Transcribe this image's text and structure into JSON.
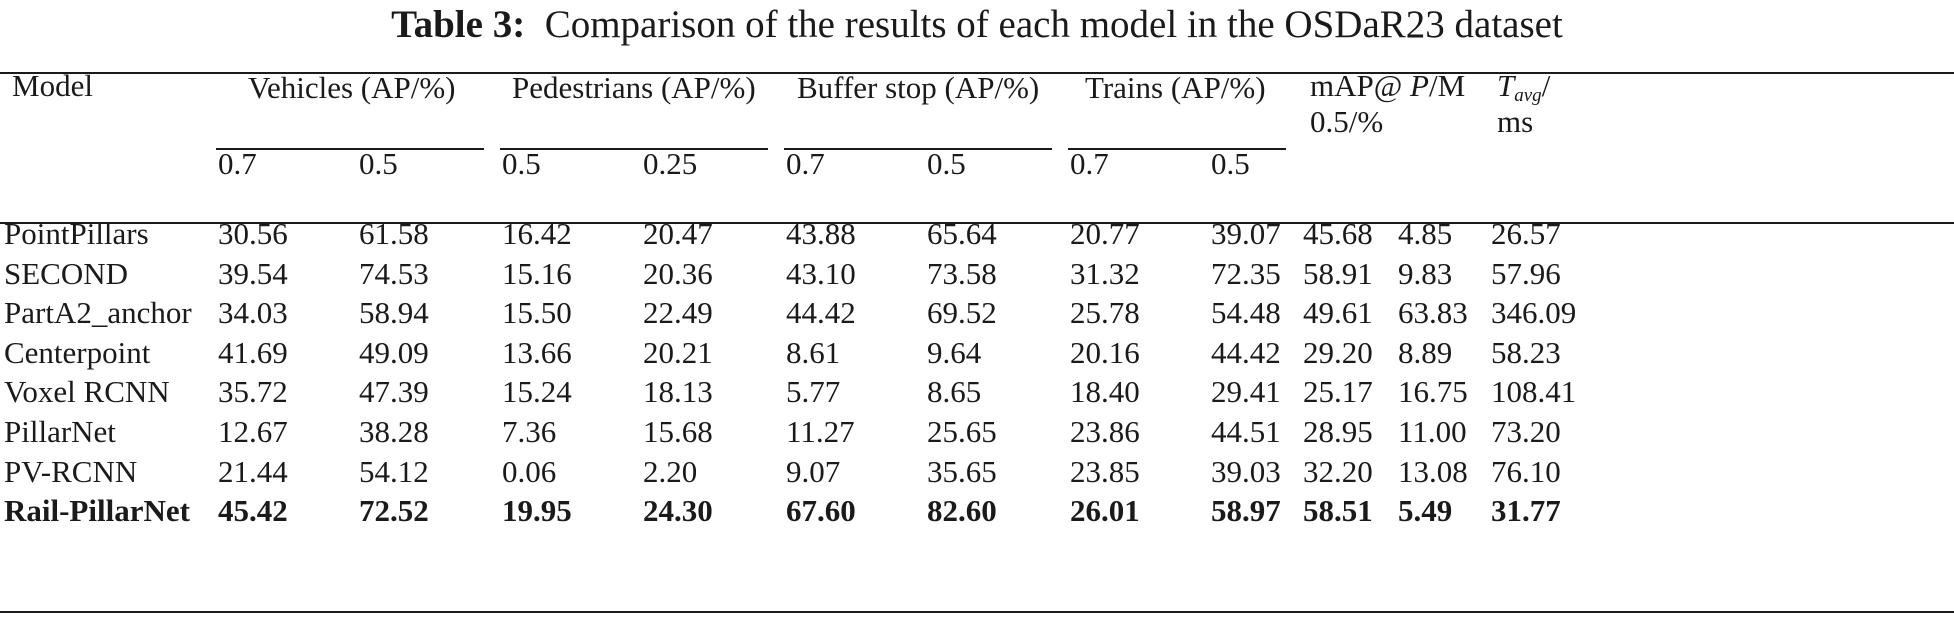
{
  "caption": {
    "label": "Table 3:",
    "text": "Comparison of the results of each model in the OSDaR23 dataset"
  },
  "header": {
    "model": "Model",
    "groups": [
      "Vehicles (AP/%)",
      "Pedestrians (AP/%)",
      "Buffer stop (AP/%)",
      "Trains (AP/%)"
    ],
    "map_line1": "mAP@",
    "map_line2": "0.5/%",
    "p_italic": "P",
    "p_unit": "/M",
    "t_main": "T",
    "t_sub": "avg",
    "t_slash": "/",
    "t_unit": "ms",
    "thresholds": [
      "0.7",
      "0.5",
      "0.5",
      "0.25",
      "0.7",
      "0.5",
      "0.7",
      "0.5"
    ]
  },
  "rows": [
    {
      "model": "PointPillars",
      "values": [
        "30.56",
        "61.58",
        "16.42",
        "20.47",
        "43.88",
        "65.64",
        "20.77",
        "39.07",
        "45.68",
        "4.85",
        "26.57"
      ]
    },
    {
      "model": "SECOND",
      "values": [
        "39.54",
        "74.53",
        "15.16",
        "20.36",
        "43.10",
        "73.58",
        "31.32",
        "72.35",
        "58.91",
        "9.83",
        "57.96"
      ]
    },
    {
      "model": "PartA2_anchor",
      "values": [
        "34.03",
        "58.94",
        "15.50",
        "22.49",
        "44.42",
        "69.52",
        "25.78",
        "54.48",
        "49.61",
        "63.83",
        "346.09"
      ]
    },
    {
      "model": "Centerpoint",
      "values": [
        "41.69",
        "49.09",
        "13.66",
        "20.21",
        "8.61",
        "9.64",
        "20.16",
        "44.42",
        "29.20",
        "8.89",
        "58.23"
      ]
    },
    {
      "model": "Voxel RCNN",
      "values": [
        "35.72",
        "47.39",
        "15.24",
        "18.13",
        "5.77",
        "8.65",
        "18.40",
        "29.41",
        "25.17",
        "16.75",
        "108.41"
      ]
    },
    {
      "model": "PillarNet",
      "values": [
        "12.67",
        "38.28",
        "7.36",
        "15.68",
        "11.27",
        "25.65",
        "23.86",
        "44.51",
        "28.95",
        "11.00",
        "73.20"
      ]
    },
    {
      "model": "PV-RCNN",
      "values": [
        "21.44",
        "54.12",
        "0.06",
        "2.20",
        "9.07",
        "35.65",
        "23.85",
        "39.03",
        "32.20",
        "13.08",
        "76.10"
      ]
    },
    {
      "model": "Rail-PillarNet",
      "bold": true,
      "values": [
        "45.42",
        "72.52",
        "19.95",
        "24.30",
        "67.60",
        "82.60",
        "26.01",
        "58.97",
        "58.51",
        "5.49",
        "31.77"
      ]
    }
  ]
}
